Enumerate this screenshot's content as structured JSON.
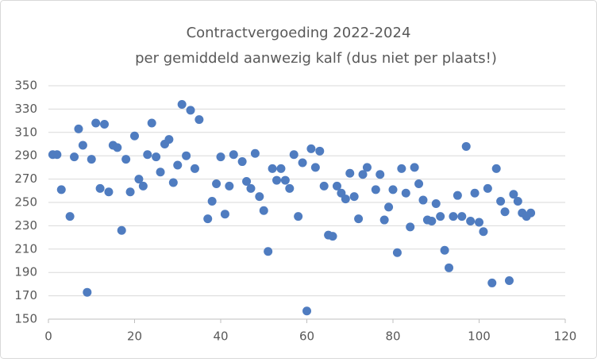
{
  "chart_data": {
    "type": "scatter",
    "title": "Contractvergoeding 2022-2024",
    "subtitle": "per gemiddeld aanwezig kalf (dus niet per plaats!)",
    "color": "#4f7cc0",
    "grid": true,
    "xlim": [
      0,
      120
    ],
    "xticks": [
      0,
      20,
      40,
      60,
      80,
      100,
      120
    ],
    "ylim": [
      150,
      350
    ],
    "yticks": [
      150,
      170,
      190,
      210,
      230,
      250,
      270,
      290,
      310,
      330,
      350
    ],
    "x": [
      1,
      2,
      3,
      5,
      6,
      7,
      8,
      9,
      10,
      11,
      12,
      13,
      14,
      15,
      16,
      17,
      18,
      19,
      20,
      21,
      22,
      23,
      24,
      25,
      26,
      27,
      28,
      29,
      30,
      31,
      32,
      33,
      34,
      35,
      37,
      38,
      39,
      40,
      41,
      42,
      43,
      45,
      46,
      47,
      48,
      49,
      50,
      51,
      52,
      53,
      54,
      55,
      56,
      57,
      58,
      59,
      60,
      61,
      62,
      63,
      64,
      65,
      66,
      67,
      68,
      69,
      70,
      71,
      72,
      73,
      74,
      76,
      77,
      78,
      79,
      80,
      81,
      82,
      83,
      84,
      85,
      86,
      87,
      88,
      89,
      90,
      91,
      92,
      93,
      94,
      95,
      96,
      97,
      98,
      99,
      100,
      101,
      102,
      103,
      104,
      105,
      106,
      107,
      108,
      109,
      110,
      111,
      112
    ],
    "values": [
      291,
      291,
      261,
      238,
      289,
      313,
      299,
      173,
      287,
      318,
      262,
      317,
      259,
      299,
      297,
      226,
      287,
      259,
      307,
      270,
      264,
      291,
      318,
      289,
      276,
      300,
      304,
      267,
      282,
      334,
      290,
      329,
      279,
      321,
      236,
      251,
      266,
      289,
      240,
      264,
      291,
      285,
      268,
      262,
      292,
      255,
      243,
      208,
      279,
      269,
      279,
      269,
      262,
      291,
      238,
      284,
      157,
      296,
      280,
      294,
      264,
      222,
      221,
      264,
      258,
      253,
      275,
      255,
      236,
      274,
      280,
      261,
      274,
      235,
      246,
      261,
      207,
      279,
      258,
      229,
      280,
      266,
      252,
      235,
      234,
      249,
      238,
      209,
      194,
      238,
      256,
      238,
      298,
      234,
      258,
      233,
      225,
      262,
      181,
      279,
      251,
      242,
      183,
      257,
      251,
      241,
      238,
      241
    ]
  }
}
